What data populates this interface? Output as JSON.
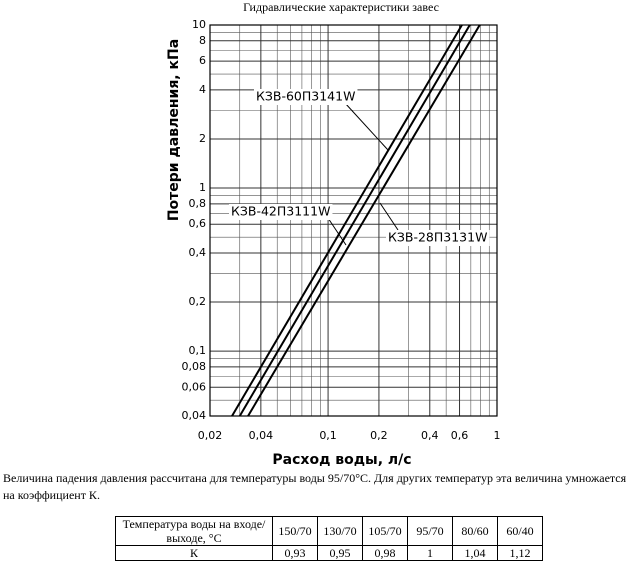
{
  "chart_data": {
    "type": "line",
    "title": "Гидравлические характеристики завес",
    "x_label": "Расход воды, л/с",
    "y_label": "Потери давления, кПа",
    "log_x": true,
    "log_y": true,
    "grid": true,
    "xlim": [
      0.02,
      1
    ],
    "ylim": [
      0.04,
      10
    ],
    "xticks": [
      {
        "value": 0.02,
        "label": "0,02"
      },
      {
        "value": 0.04,
        "label": "0,04"
      },
      {
        "value": 0.1,
        "label": "0,1"
      },
      {
        "value": 0.2,
        "label": "0,2"
      },
      {
        "value": 0.4,
        "label": "0,4"
      },
      {
        "value": 0.6,
        "label": "0,6"
      },
      1
    ],
    "yticks": [
      {
        "value": 0.04,
        "label": "0,04"
      },
      {
        "value": 0.06,
        "label": "0,06"
      },
      {
        "value": 0.08,
        "label": "0,08"
      },
      {
        "value": 0.1,
        "label": "0,1"
      },
      {
        "value": 0.2,
        "label": "0,2"
      },
      {
        "value": 0.4,
        "label": "0,4"
      },
      {
        "value": 0.6,
        "label": "0,6"
      },
      {
        "value": 0.8,
        "label": "0,8"
      },
      1,
      2,
      4,
      6,
      8,
      10
    ],
    "x_minor_ticks": [
      0.03,
      0.05,
      0.06,
      0.07,
      0.08,
      0.09,
      0.3,
      0.5,
      0.7,
      0.8,
      0.9
    ],
    "y_minor_ticks": [
      0.05,
      0.07,
      0.09,
      0.3,
      0.5,
      0.7,
      0.9,
      3,
      5,
      7,
      9
    ],
    "series": [
      {
        "name": "КЗВ-60П3141W",
        "color": "#000000",
        "x": [
          0.027,
          0.62
        ],
        "values": [
          0.04,
          10
        ]
      },
      {
        "name": "КЗВ-42П3111W",
        "color": "#000000",
        "x": [
          0.03,
          0.69
        ],
        "values": [
          0.04,
          10
        ]
      },
      {
        "name": "КЗВ-28П3131W",
        "color": "#000000",
        "x": [
          0.0336,
          0.79
        ],
        "values": [
          0.04,
          10
        ]
      }
    ]
  },
  "note": "Величина падения давления рассчитана для температуры воды 95/70°С. Для других температур эта величина умножается на коэффициент К.",
  "table": {
    "header": [
      "Температура воды на входе/выходе, °С",
      "150/70",
      "130/70",
      "105/70",
      "95/70",
      "80/60",
      "60/40"
    ],
    "rows": [
      [
        "К",
        "0,93",
        "0,95",
        "0,98",
        "1",
        "1,04",
        "1,12"
      ]
    ]
  }
}
